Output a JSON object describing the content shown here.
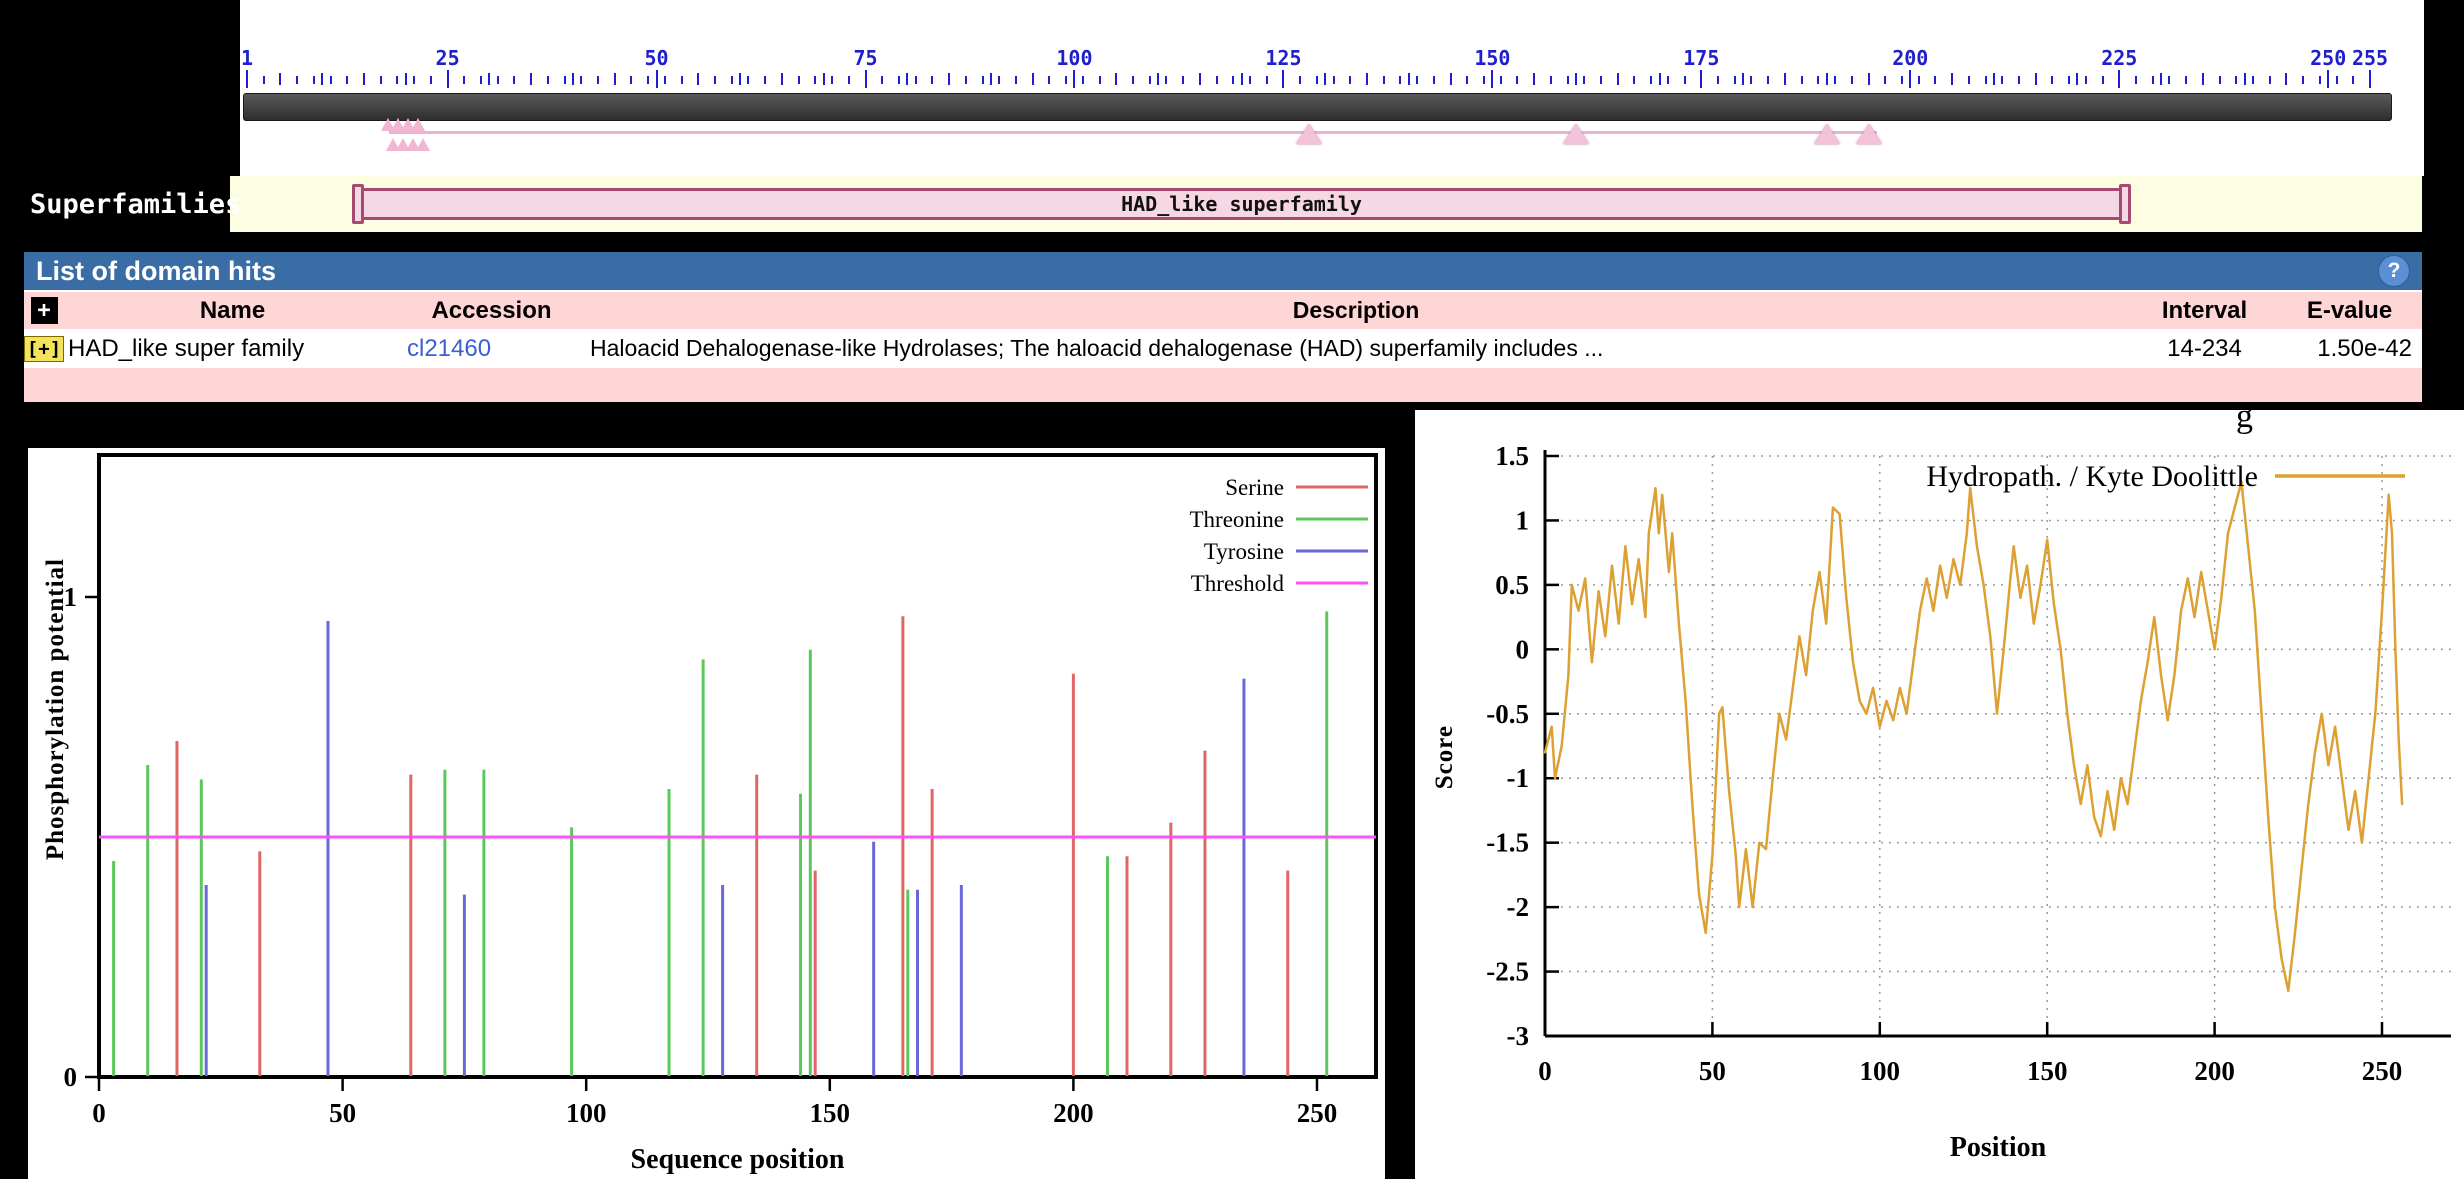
{
  "colors": {
    "header_blue": "#3a6da6",
    "row_pink": "#ffd6d6",
    "cream": "#fdfde1",
    "domain_bar_fill": "#f6d7e4",
    "domain_bar_border": "#a64a72",
    "link_blue": "#3b5fd0",
    "ruler_blue": "#1f1fd0",
    "sequence_bar_gray": "#3a3a3a"
  },
  "ruler": {
    "start": 1,
    "end": 255,
    "labels": [
      1,
      25,
      50,
      75,
      100,
      125,
      150,
      175,
      200,
      225,
      250,
      255
    ]
  },
  "features": {
    "line_span": [
      18,
      196
    ],
    "cluster_row1": [
      17.9,
      19.1,
      20.3,
      21.5
    ],
    "cluster_row2": [
      18.5,
      19.7,
      20.9,
      22.1
    ],
    "markers": [
      128,
      160,
      190,
      195
    ]
  },
  "superfamilies": {
    "label": "Superfamilies",
    "bar_label": "HAD_like superfamily"
  },
  "domain_hits": {
    "title": "List of domain hits",
    "help": "?",
    "expander_header": "+",
    "columns": [
      "Name",
      "Accession",
      "Description",
      "Interval",
      "E-value"
    ],
    "rows": [
      {
        "expander": "[+]",
        "name": "HAD_like super family",
        "accession": "cl21460",
        "description": "Haloacid Dehalogenase-like Hydrolases; The haloacid dehalogenase (HAD) superfamily includes ...",
        "interval": "14-234",
        "evalue": "1.50e-42"
      }
    ]
  },
  "stray_text": "g",
  "chart_data": [
    {
      "type": "bar",
      "title": "",
      "xlabel": "Sequence position",
      "ylabel": "Phosphorylation potential",
      "xlim": [
        0,
        259
      ],
      "ylim": [
        0,
        1.3
      ],
      "xticks": [
        0,
        50,
        100,
        150,
        200,
        250
      ],
      "yticks": [
        0,
        1
      ],
      "threshold": 0.5,
      "legend": [
        {
          "name": "Serine",
          "color": "#e06666"
        },
        {
          "name": "Threonine",
          "color": "#5cc85c"
        },
        {
          "name": "Tyrosine",
          "color": "#6868d8"
        },
        {
          "name": "Threshold",
          "color": "#ff50ff"
        }
      ],
      "series": [
        {
          "name": "Serine",
          "color": "#e06666",
          "points": [
            [
              16,
              0.7
            ],
            [
              33,
              0.47
            ],
            [
              64,
              0.63
            ],
            [
              135,
              0.63
            ],
            [
              147,
              0.43
            ],
            [
              165,
              0.96
            ],
            [
              171,
              0.6
            ],
            [
              200,
              0.84
            ],
            [
              211,
              0.46
            ],
            [
              220,
              0.53
            ],
            [
              227,
              0.68
            ],
            [
              244,
              0.43
            ]
          ]
        },
        {
          "name": "Threonine",
          "color": "#5cc85c",
          "points": [
            [
              3,
              0.45
            ],
            [
              10,
              0.65
            ],
            [
              21,
              0.62
            ],
            [
              71,
              0.64
            ],
            [
              79,
              0.64
            ],
            [
              97,
              0.52
            ],
            [
              117,
              0.6
            ],
            [
              124,
              0.87
            ],
            [
              144,
              0.59
            ],
            [
              146,
              0.89
            ],
            [
              166,
              0.39
            ],
            [
              207,
              0.46
            ],
            [
              252,
              0.97
            ]
          ]
        },
        {
          "name": "Tyrosine",
          "color": "#6868d8",
          "points": [
            [
              22,
              0.4
            ],
            [
              47,
              0.95
            ],
            [
              75,
              0.38
            ],
            [
              128,
              0.4
            ],
            [
              159,
              0.49
            ],
            [
              168,
              0.39
            ],
            [
              177,
              0.4
            ],
            [
              235,
              0.83
            ]
          ]
        }
      ]
    },
    {
      "type": "line",
      "title": "Hydropath. / Kyte  Doolittle",
      "xlabel": "Position",
      "ylabel": "Score",
      "xlim": [
        0,
        270
      ],
      "ylim": [
        -3,
        1.5
      ],
      "xticks": [
        0,
        50,
        100,
        150,
        200,
        250
      ],
      "yticks": [
        1.5,
        1,
        0.5,
        0,
        -0.5,
        -1,
        -1.5,
        -2,
        -2.5,
        -3
      ],
      "grid": true,
      "line_color": "#dda032",
      "points": [
        [
          0,
          -0.8
        ],
        [
          2,
          -0.6
        ],
        [
          3,
          -1.0
        ],
        [
          5,
          -0.75
        ],
        [
          7,
          -0.2
        ],
        [
          8,
          0.5
        ],
        [
          10,
          0.3
        ],
        [
          12,
          0.55
        ],
        [
          14,
          -0.1
        ],
        [
          16,
          0.45
        ],
        [
          18,
          0.1
        ],
        [
          20,
          0.65
        ],
        [
          22,
          0.2
        ],
        [
          24,
          0.8
        ],
        [
          26,
          0.35
        ],
        [
          28,
          0.7
        ],
        [
          30,
          0.25
        ],
        [
          31,
          0.9
        ],
        [
          33,
          1.25
        ],
        [
          34,
          0.9
        ],
        [
          35,
          1.2
        ],
        [
          37,
          0.6
        ],
        [
          38,
          0.9
        ],
        [
          40,
          0.2
        ],
        [
          42,
          -0.4
        ],
        [
          44,
          -1.2
        ],
        [
          46,
          -1.9
        ],
        [
          48,
          -2.2
        ],
        [
          50,
          -1.6
        ],
        [
          52,
          -0.5
        ],
        [
          53,
          -0.45
        ],
        [
          55,
          -1.1
        ],
        [
          57,
          -1.6
        ],
        [
          58,
          -2.0
        ],
        [
          60,
          -1.55
        ],
        [
          62,
          -2.0
        ],
        [
          64,
          -1.5
        ],
        [
          66,
          -1.55
        ],
        [
          68,
          -1.0
        ],
        [
          70,
          -0.5
        ],
        [
          72,
          -0.7
        ],
        [
          74,
          -0.3
        ],
        [
          76,
          0.1
        ],
        [
          78,
          -0.2
        ],
        [
          80,
          0.3
        ],
        [
          82,
          0.6
        ],
        [
          84,
          0.2
        ],
        [
          86,
          1.1
        ],
        [
          88,
          1.05
        ],
        [
          90,
          0.4
        ],
        [
          92,
          -0.1
        ],
        [
          94,
          -0.4
        ],
        [
          96,
          -0.5
        ],
        [
          98,
          -0.3
        ],
        [
          100,
          -0.6
        ],
        [
          102,
          -0.4
        ],
        [
          104,
          -0.55
        ],
        [
          106,
          -0.3
        ],
        [
          108,
          -0.5
        ],
        [
          110,
          -0.1
        ],
        [
          112,
          0.3
        ],
        [
          114,
          0.55
        ],
        [
          116,
          0.3
        ],
        [
          118,
          0.65
        ],
        [
          120,
          0.4
        ],
        [
          122,
          0.7
        ],
        [
          124,
          0.5
        ],
        [
          126,
          0.9
        ],
        [
          127,
          1.25
        ],
        [
          129,
          0.8
        ],
        [
          131,
          0.5
        ],
        [
          133,
          0.1
        ],
        [
          135,
          -0.5
        ],
        [
          137,
          0.0
        ],
        [
          139,
          0.55
        ],
        [
          140,
          0.8
        ],
        [
          142,
          0.4
        ],
        [
          144,
          0.65
        ],
        [
          146,
          0.2
        ],
        [
          148,
          0.5
        ],
        [
          150,
          0.85
        ],
        [
          152,
          0.35
        ],
        [
          154,
          0.0
        ],
        [
          156,
          -0.5
        ],
        [
          158,
          -0.9
        ],
        [
          160,
          -1.2
        ],
        [
          162,
          -0.9
        ],
        [
          164,
          -1.3
        ],
        [
          166,
          -1.45
        ],
        [
          168,
          -1.1
        ],
        [
          170,
          -1.4
        ],
        [
          172,
          -1.0
        ],
        [
          174,
          -1.2
        ],
        [
          176,
          -0.8
        ],
        [
          178,
          -0.4
        ],
        [
          180,
          -0.1
        ],
        [
          182,
          0.25
        ],
        [
          184,
          -0.2
        ],
        [
          186,
          -0.55
        ],
        [
          188,
          -0.2
        ],
        [
          190,
          0.3
        ],
        [
          192,
          0.55
        ],
        [
          194,
          0.25
        ],
        [
          196,
          0.6
        ],
        [
          198,
          0.3
        ],
        [
          200,
          0.0
        ],
        [
          202,
          0.4
        ],
        [
          204,
          0.9
        ],
        [
          206,
          1.1
        ],
        [
          208,
          1.3
        ],
        [
          210,
          0.8
        ],
        [
          212,
          0.3
        ],
        [
          214,
          -0.5
        ],
        [
          216,
          -1.3
        ],
        [
          218,
          -2.0
        ],
        [
          220,
          -2.4
        ],
        [
          222,
          -2.65
        ],
        [
          224,
          -2.2
        ],
        [
          226,
          -1.7
        ],
        [
          228,
          -1.2
        ],
        [
          230,
          -0.8
        ],
        [
          232,
          -0.5
        ],
        [
          234,
          -0.9
        ],
        [
          236,
          -0.6
        ],
        [
          238,
          -1.0
        ],
        [
          240,
          -1.4
        ],
        [
          242,
          -1.1
        ],
        [
          244,
          -1.5
        ],
        [
          246,
          -1.0
        ],
        [
          248,
          -0.5
        ],
        [
          250,
          0.3
        ],
        [
          252,
          1.2
        ],
        [
          253,
          0.9
        ],
        [
          254,
          0.0
        ],
        [
          255,
          -0.7
        ],
        [
          256,
          -1.2
        ]
      ]
    }
  ]
}
